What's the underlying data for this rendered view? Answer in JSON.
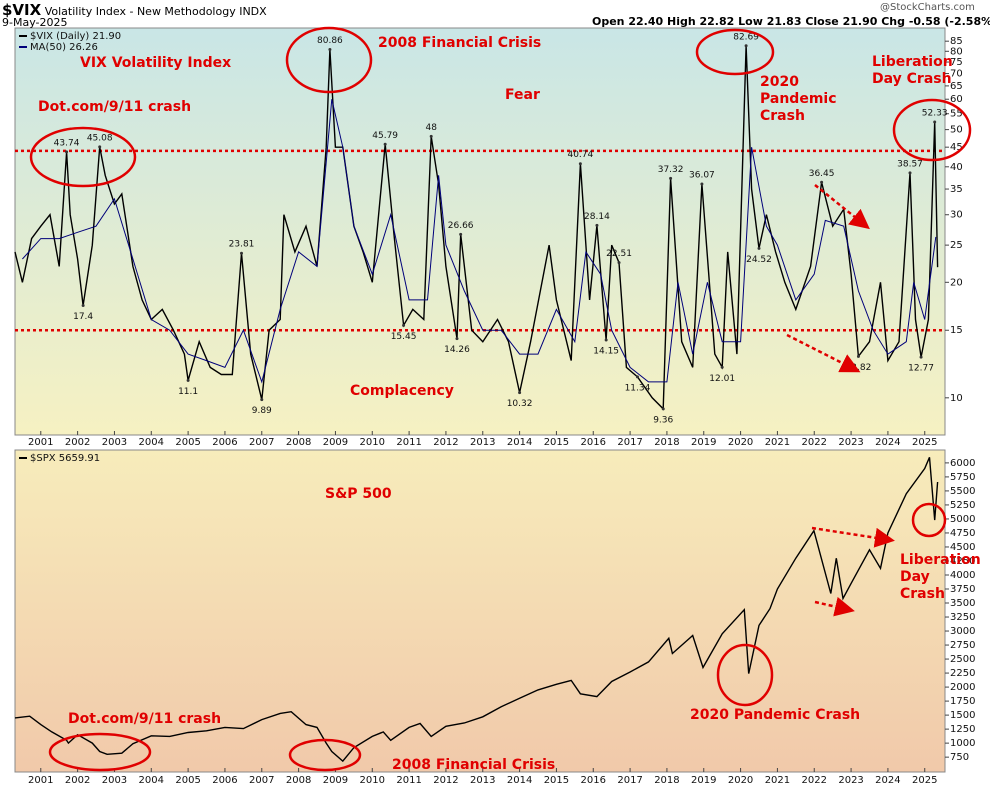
{
  "header": {
    "symbol": "$VIX",
    "name": "Volatility Index - New Methodology",
    "exchange": "INDX",
    "date": "9-May-2025",
    "quote": [
      "Open 22.40",
      "High 22.82",
      "Low 21.83",
      "Close 21.90",
      "Chg -0.58 (-2.58%)"
    ],
    "watermark": "@StockCharts.com"
  },
  "chart_data": [
    {
      "type": "line",
      "log_scale": true,
      "xlim": [
        2000.3,
        2025.55
      ],
      "xticks": [
        2001,
        2002,
        2003,
        2004,
        2005,
        2006,
        2007,
        2008,
        2009,
        2010,
        2011,
        2012,
        2013,
        2014,
        2015,
        2016,
        2017,
        2018,
        2019,
        2020,
        2021,
        2022,
        2023,
        2024,
        2025
      ],
      "ylim": [
        8,
        92
      ],
      "yticks": [
        10,
        15,
        20,
        25,
        30,
        35,
        40,
        45,
        50,
        55,
        60,
        65,
        70,
        75,
        80,
        85
      ],
      "reference_lines": [
        44,
        15
      ],
      "reference_color": "#e00000",
      "series": [
        {
          "name": "$VIX (Daily) 21.90",
          "color": "#000000",
          "x": [
            2000.3,
            2000.5,
            2000.75,
            2001.0,
            2001.25,
            2001.5,
            2001.7,
            2001.8,
            2002.0,
            2002.15,
            2002.4,
            2002.6,
            2002.75,
            2003.0,
            2003.2,
            2003.5,
            2003.75,
            2004.0,
            2004.3,
            2004.6,
            2004.9,
            2005.0,
            2005.3,
            2005.6,
            2005.9,
            2006.2,
            2006.45,
            2006.7,
            2007.0,
            2007.2,
            2007.5,
            2007.6,
            2007.9,
            2008.2,
            2008.5,
            2008.75,
            2008.85,
            2009.0,
            2009.2,
            2009.5,
            2009.75,
            2010.0,
            2010.35,
            2010.6,
            2010.85,
            2011.1,
            2011.4,
            2011.6,
            2011.8,
            2012.0,
            2012.3,
            2012.4,
            2012.7,
            2013.0,
            2013.4,
            2013.7,
            2014.0,
            2014.3,
            2014.8,
            2015.0,
            2015.4,
            2015.65,
            2015.9,
            2016.1,
            2016.35,
            2016.5,
            2016.7,
            2016.9,
            2017.2,
            2017.6,
            2017.9,
            2018.1,
            2018.4,
            2018.7,
            2018.95,
            2019.3,
            2019.5,
            2019.65,
            2019.9,
            2020.15,
            2020.3,
            2020.5,
            2020.7,
            2020.95,
            2021.2,
            2021.5,
            2021.9,
            2022.2,
            2022.5,
            2022.8,
            2023.0,
            2023.2,
            2023.5,
            2023.8,
            2024.0,
            2024.3,
            2024.6,
            2024.75,
            2024.9,
            2025.1,
            2025.27,
            2025.35
          ],
          "values": [
            24,
            20,
            26,
            28,
            30,
            22,
            43.74,
            30,
            23,
            17.4,
            25,
            45.08,
            38,
            32,
            34,
            22,
            18,
            16,
            17,
            15,
            13,
            11.1,
            14,
            12,
            11.5,
            11.5,
            23.81,
            13,
            9.89,
            15,
            16,
            30,
            24,
            28,
            22,
            45,
            80.86,
            45,
            45,
            28,
            24,
            20,
            45.79,
            26,
            15.45,
            17,
            16,
            48.0,
            36,
            22,
            14.26,
            26.66,
            15,
            14,
            16,
            14,
            10.32,
            14,
            25,
            18,
            12.5,
            40.74,
            18,
            28.14,
            14.15,
            25,
            22.51,
            12,
            11.34,
            10,
            9.36,
            37.32,
            14,
            12,
            36.07,
            13,
            12.01,
            24,
            13,
            82.69,
            35,
            24.52,
            30,
            24,
            20,
            17,
            22,
            36.45,
            28,
            31,
            21,
            12.82,
            14,
            20,
            12.5,
            14,
            38.57,
            16,
            12.77,
            16,
            52.33,
            21.9
          ]
        },
        {
          "name": "MA(50) 26.26",
          "color": "#00007a",
          "x": [
            2000.5,
            2001,
            2001.5,
            2002,
            2002.5,
            2003,
            2003.5,
            2004,
            2004.5,
            2005,
            2005.5,
            2006,
            2006.5,
            2007,
            2007.5,
            2008,
            2008.5,
            2008.9,
            2009.2,
            2009.5,
            2010,
            2010.5,
            2011,
            2011.5,
            2011.8,
            2012,
            2012.5,
            2013,
            2013.5,
            2014,
            2014.5,
            2015,
            2015.5,
            2015.8,
            2016.2,
            2016.5,
            2017,
            2017.5,
            2018,
            2018.3,
            2018.7,
            2019.1,
            2019.5,
            2020,
            2020.3,
            2020.7,
            2021,
            2021.5,
            2022,
            2022.3,
            2022.8,
            2023.2,
            2023.6,
            2024,
            2024.5,
            2024.7,
            2025,
            2025.3
          ],
          "values": [
            23,
            26,
            26,
            27,
            28,
            33,
            23,
            16,
            15,
            13,
            12.5,
            12,
            15,
            11,
            17,
            24,
            22,
            60,
            45,
            28,
            21,
            30,
            18,
            18,
            38,
            25,
            19,
            15,
            15,
            13,
            13,
            17,
            14,
            24,
            21,
            15,
            12,
            11,
            11,
            20,
            13,
            20,
            14,
            14,
            45,
            28,
            25,
            18,
            21,
            29,
            28,
            19,
            15,
            13,
            14,
            20,
            16,
            26.26
          ]
        }
      ],
      "point_labels": [
        {
          "x": 2001.7,
          "y": 43.74
        },
        {
          "x": 2002.6,
          "y": 45.08
        },
        {
          "x": 2002.15,
          "y": 17.4
        },
        {
          "x": 2005.0,
          "y": 11.1
        },
        {
          "x": 2006.45,
          "y": 23.81
        },
        {
          "x": 2007.0,
          "y": 9.89
        },
        {
          "x": 2008.85,
          "y": 80.86
        },
        {
          "x": 2010.35,
          "y": 45.79
        },
        {
          "x": 2010.85,
          "y": 15.45
        },
        {
          "x": 2011.6,
          "y": 48.0
        },
        {
          "x": 2012.4,
          "y": 26.66
        },
        {
          "x": 2012.3,
          "y": 14.26
        },
        {
          "x": 2014.0,
          "y": 10.32
        },
        {
          "x": 2015.65,
          "y": 40.74
        },
        {
          "x": 2016.1,
          "y": 28.14
        },
        {
          "x": 2016.35,
          "y": 14.15
        },
        {
          "x": 2016.7,
          "y": 22.51
        },
        {
          "x": 2017.2,
          "y": 11.34
        },
        {
          "x": 2017.9,
          "y": 9.36
        },
        {
          "x": 2018.1,
          "y": 37.32
        },
        {
          "x": 2018.95,
          "y": 36.07
        },
        {
          "x": 2019.5,
          "y": 12.01
        },
        {
          "x": 2020.15,
          "y": 82.69
        },
        {
          "x": 2020.5,
          "y": 24.52
        },
        {
          "x": 2022.2,
          "y": 36.45
        },
        {
          "x": 2023.2,
          "y": 12.82
        },
        {
          "x": 2024.6,
          "y": 38.57
        },
        {
          "x": 2024.9,
          "y": 12.77
        },
        {
          "x": 2025.27,
          "y": 52.33
        }
      ],
      "annotations": [
        "VIX Volatility Index",
        "Dot.com/9/11 crash",
        "2008 Financial Crisis",
        "Fear",
        "2020 Pandemic Crash",
        "Liberation Day Crash",
        "Complacency"
      ]
    },
    {
      "type": "line",
      "log_scale": false,
      "xlim": [
        2000.3,
        2025.55
      ],
      "xticks": [
        2001,
        2002,
        2003,
        2004,
        2005,
        2006,
        2007,
        2008,
        2009,
        2010,
        2011,
        2012,
        2013,
        2014,
        2015,
        2016,
        2017,
        2018,
        2019,
        2020,
        2021,
        2022,
        2023,
        2024,
        2025
      ],
      "ylim": [
        485,
        6230
      ],
      "yticks": [
        750,
        1000,
        1250,
        1500,
        1750,
        2000,
        2250,
        2500,
        2750,
        3000,
        3250,
        3500,
        3750,
        4000,
        4250,
        4500,
        4750,
        5000,
        5250,
        5500,
        5750,
        6000
      ],
      "series": [
        {
          "name": "$SPX 5659.91",
          "color": "#000000",
          "x": [
            2000.3,
            2000.7,
            2001.0,
            2001.3,
            2001.7,
            2001.75,
            2002.0,
            2002.4,
            2002.6,
            2002.8,
            2003.2,
            2003.5,
            2004.0,
            2004.5,
            2005.0,
            2005.5,
            2006.0,
            2006.5,
            2007.0,
            2007.5,
            2007.8,
            2008.2,
            2008.5,
            2008.75,
            2008.9,
            2009.2,
            2009.5,
            2010.0,
            2010.3,
            2010.5,
            2011.0,
            2011.3,
            2011.6,
            2012.0,
            2012.5,
            2013.0,
            2013.5,
            2014.0,
            2014.5,
            2015.0,
            2015.4,
            2015.65,
            2016.1,
            2016.5,
            2017.0,
            2017.5,
            2018.05,
            2018.15,
            2018.7,
            2018.98,
            2019.5,
            2020.1,
            2020.22,
            2020.5,
            2020.8,
            2021.0,
            2021.5,
            2021.99,
            2022.45,
            2022.6,
            2022.78,
            2023.0,
            2023.5,
            2023.8,
            2024.0,
            2024.5,
            2025.0,
            2025.13,
            2025.27,
            2025.35
          ],
          "values": [
            1450,
            1480,
            1330,
            1200,
            1050,
            1000,
            1150,
            1000,
            850,
            800,
            820,
            990,
            1130,
            1120,
            1190,
            1220,
            1280,
            1260,
            1420,
            1530,
            1560,
            1330,
            1280,
            1000,
            850,
            680,
            920,
            1120,
            1200,
            1050,
            1280,
            1350,
            1120,
            1300,
            1360,
            1470,
            1650,
            1800,
            1950,
            2050,
            2120,
            1880,
            1830,
            2100,
            2270,
            2450,
            2870,
            2600,
            2920,
            2350,
            2950,
            3380,
            2240,
            3100,
            3400,
            3750,
            4300,
            4790,
            3670,
            4300,
            3580,
            3850,
            4450,
            4120,
            4750,
            5450,
            5900,
            6100,
            4980,
            5659.91
          ]
        }
      ],
      "annotations": [
        "S&P 500",
        "Liberation Day Crash",
        "Dot.com/9/11 crash",
        "2008 Financial Crisis",
        "2020 Pandemic Crash"
      ]
    }
  ]
}
